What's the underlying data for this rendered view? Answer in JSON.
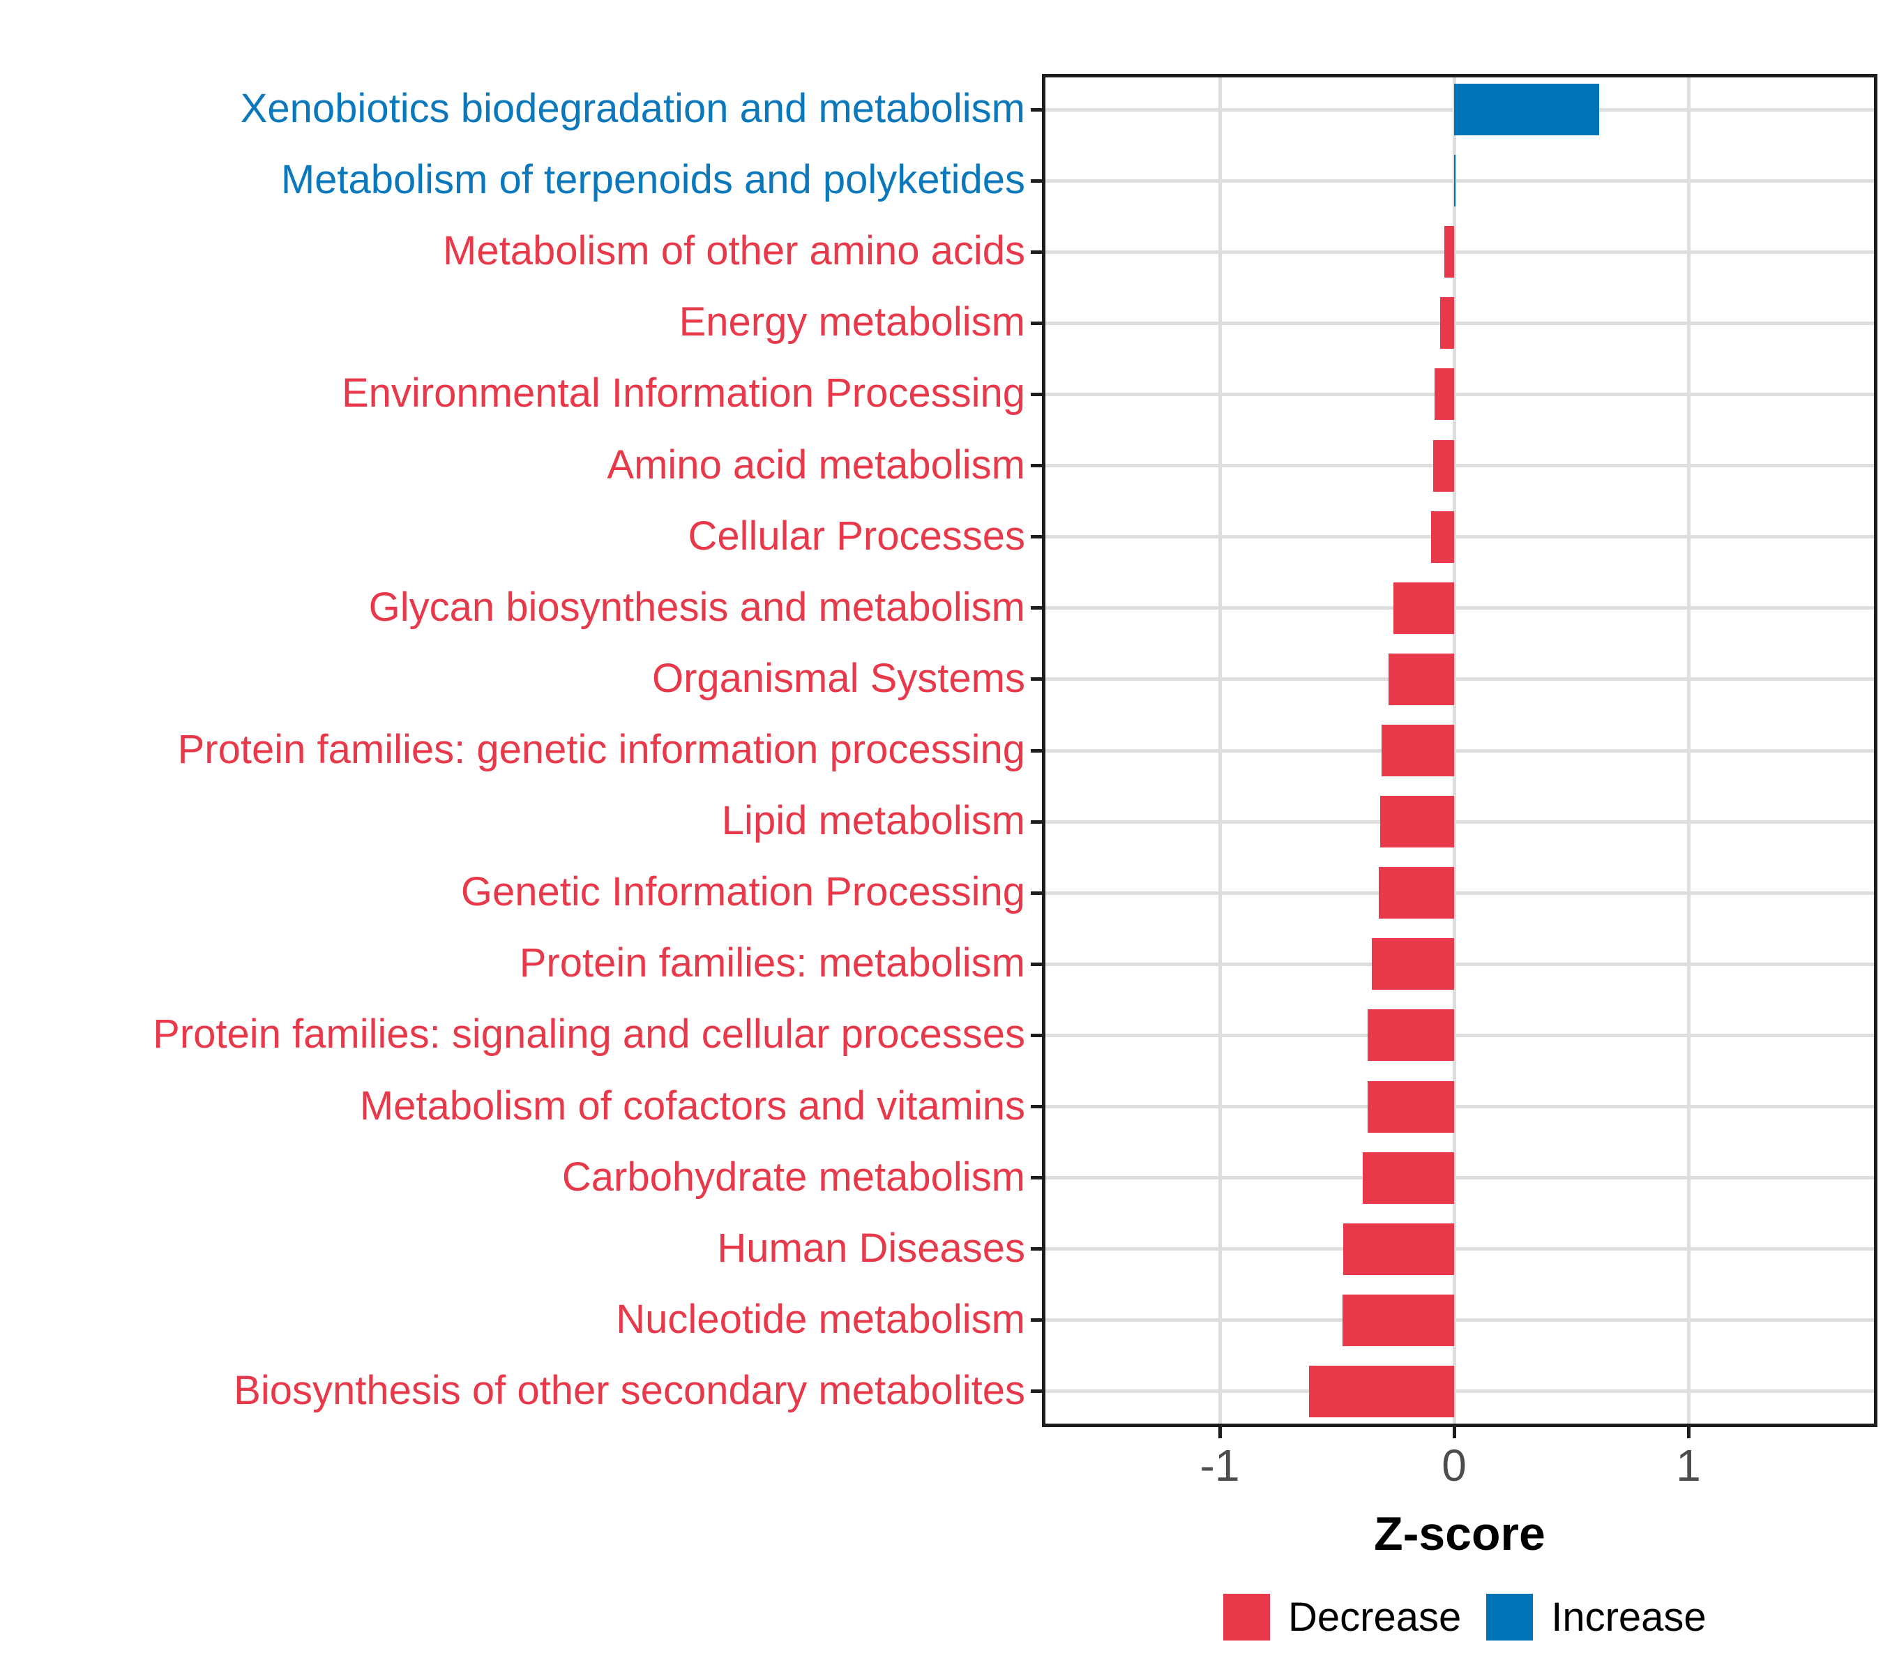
{
  "chart_data": {
    "type": "bar",
    "orientation": "horizontal",
    "title": "",
    "xlabel": "Z-score",
    "ylabel": "",
    "xlim": [
      -1.76,
      1.81
    ],
    "grid": "major",
    "legend_position": "bottom",
    "x_ticks": [
      {
        "value": -1,
        "label": "-1"
      },
      {
        "value": 0,
        "label": "0"
      },
      {
        "value": 1,
        "label": "1"
      }
    ],
    "categories": [
      "Xenobiotics biodegradation and metabolism",
      "Metabolism of terpenoids and polyketides",
      "Metabolism of other amino acids",
      "Energy metabolism",
      "Environmental Information Processing",
      "Amino acid metabolism",
      "Cellular Processes",
      "Glycan biosynthesis and metabolism",
      "Organismal Systems",
      "Protein families: genetic information processing",
      "Lipid metabolism",
      "Genetic Information Processing",
      "Protein families: metabolism",
      "Protein families: signaling and cellular processes",
      "Metabolism of cofactors and vitamins",
      "Carbohydrate metabolism",
      "Human Diseases",
      "Nucleotide metabolism",
      "Biosynthesis of other secondary metabolites"
    ],
    "series": [
      {
        "name": "Z-score",
        "values": [
          0.62,
          0.006,
          -0.043,
          -0.06,
          -0.082,
          -0.089,
          -0.097,
          -0.26,
          -0.28,
          -0.31,
          -0.315,
          -0.32,
          -0.35,
          -0.37,
          -0.37,
          -0.39,
          -0.472,
          -0.475,
          -0.62
        ]
      }
    ],
    "directions": [
      "Increase",
      "Increase",
      "Decrease",
      "Decrease",
      "Decrease",
      "Decrease",
      "Decrease",
      "Decrease",
      "Decrease",
      "Decrease",
      "Decrease",
      "Decrease",
      "Decrease",
      "Decrease",
      "Decrease",
      "Decrease",
      "Decrease",
      "Decrease",
      "Decrease"
    ],
    "colors": {
      "Decrease": "#E8394A",
      "Increase": "#0074B6"
    },
    "label_colors": {
      "Decrease": "#E8394A",
      "Increase": "#0C78BC"
    },
    "gridline_color": "#DEDEDE",
    "axis_color": "#1D1D1D",
    "tick_label_color": "#4D4D4D"
  },
  "legend": {
    "entries": [
      {
        "label": "Decrease",
        "direction": "Decrease"
      },
      {
        "label": "Increase",
        "direction": "Increase"
      }
    ]
  },
  "axis": {
    "x_title": "Z-score"
  }
}
